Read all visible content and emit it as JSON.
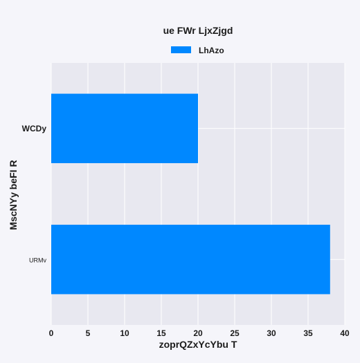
{
  "chart_data": {
    "type": "bar",
    "orientation": "horizontal",
    "title": "ue FWr LjxZjgd",
    "xlabel": "zoprQZxYcYbu T",
    "ylabel": "MscNYy beFI R",
    "categories": [
      "WCDy",
      "URMv"
    ],
    "series": [
      {
        "name": "LhAzo",
        "values": [
          20,
          38
        ],
        "color": "#0088ff"
      }
    ],
    "xlim": [
      0,
      40
    ],
    "xticks": [
      "0",
      "5",
      "10",
      "15",
      "20",
      "25",
      "30",
      "35",
      "40"
    ],
    "grid": true,
    "legend_position": "top-center",
    "plot_background": "#e8e8f0",
    "figure_background": "#f5f5fa"
  }
}
